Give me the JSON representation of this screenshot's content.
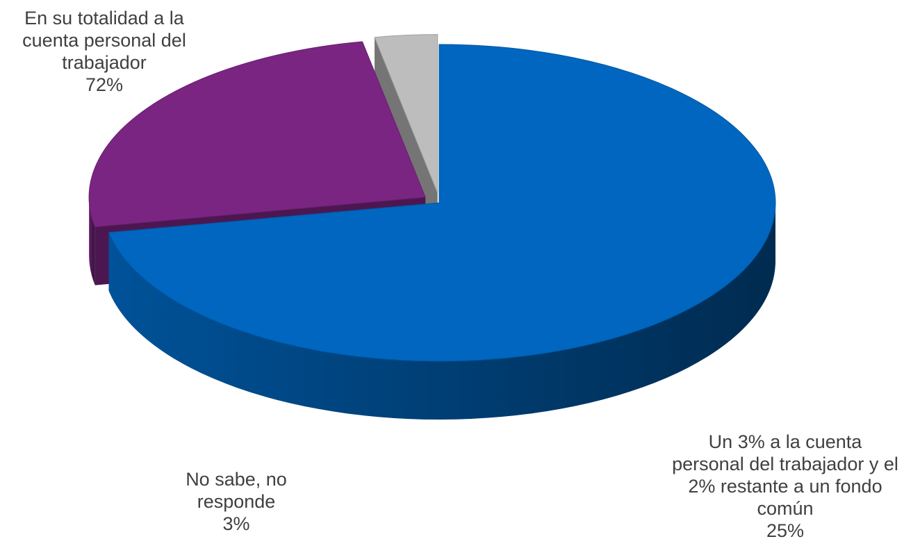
{
  "chart_data": {
    "type": "pie",
    "slices": [
      {
        "label": "En su totalidad a la cuenta personal del trabajador",
        "value": 72,
        "display": "72%",
        "color": "#0066BF"
      },
      {
        "label": "Un 3% a la cuenta personal del trabajador y el 2% restante a un fondo común",
        "value": 25,
        "display": "25%",
        "color": "#7B2583"
      },
      {
        "label": "No sabe, no responde",
        "value": 3,
        "display": "3%",
        "color": "#BDBDBD"
      }
    ]
  },
  "labels": [
    {
      "lines": [
        "En su totalidad a la",
        "cuenta personal del",
        "trabajador"
      ],
      "pct": "72%"
    },
    {
      "lines": [
        "Un 3% a la cuenta",
        "personal del trabajador y el",
        "2% restante a un fondo",
        "común"
      ],
      "pct": "25%"
    },
    {
      "lines": [
        "No sabe, no",
        "responde"
      ],
      "pct": "3%"
    }
  ]
}
